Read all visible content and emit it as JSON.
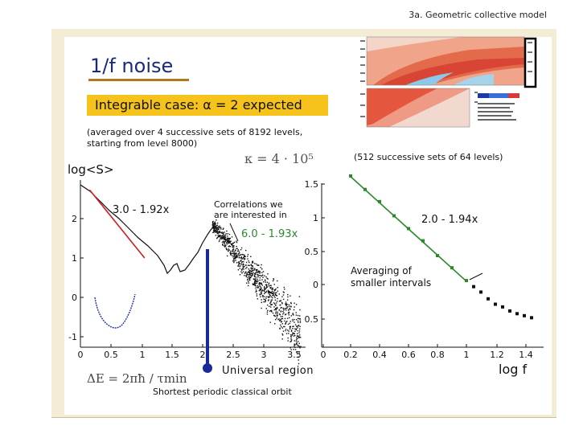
{
  "header": {
    "title": "3a. Geometric collective model"
  },
  "slide": {
    "title": "1/f noise",
    "banner": "Integrable case: α = 2 expected",
    "note_left": "(averaged over 4 successive sets of 8192 levels, starting from level 8000)",
    "note_right": "(512 successive sets of 64 levels)",
    "formula_s": "κ = 4 · 10⁵",
    "ylabel": "log<S>",
    "xlabel": "log f",
    "fit_left": "3.0 - 1.92x",
    "fit_mid": "6.0 - 1.93x",
    "fit_right": "2.0 - 1.94x",
    "annot_correlations": "Correlations we are interested in",
    "annot_averaging": "Averaging of smaller intervals",
    "universal_region": "Universal region",
    "formula_de": "ΔE = 2πħ / τmin",
    "orbit_label": "Shortest periodic classical orbit"
  },
  "colors": {
    "fit_left": "#cc2222",
    "fit_right": "#2a8a2a",
    "marker": "#1a2a9a",
    "banner": "#f6c31c",
    "title": "#1a2a7a"
  },
  "chart_data": {
    "type": "line",
    "xlabel": "log f",
    "ylabel": "log<S>",
    "left_axis": {
      "ticks_y": [
        "-1",
        "0",
        "1",
        "2"
      ],
      "ticks_x": [
        "0",
        "0.5",
        "1",
        "1.5",
        "2",
        "2.5",
        "3",
        "3.5"
      ]
    },
    "right_axis": {
      "ticks_y": [
        "0.5",
        "0",
        "0.5",
        "1",
        "1.5"
      ],
      "ticks_x": [
        "0",
        "0.2",
        "0.4",
        "0.6",
        "0.8",
        "1",
        "1.2",
        "1.4"
      ]
    },
    "series": [
      {
        "fit": "3.0 - 1.92x",
        "x": [
          0.15,
          1.05
        ],
        "y": [
          2.71,
          0.98
        ]
      },
      {
        "fit": "6.0 - 1.93x",
        "x": [
          2.15,
          3.6
        ],
        "y": [
          1.85,
          -0.95
        ]
      },
      {
        "fit": "2.0 - 1.94x",
        "x": [
          0.2,
          1.0
        ],
        "y": [
          1.61,
          0.06
        ]
      }
    ],
    "right_points": {
      "x": [
        0.2,
        0.3,
        0.4,
        0.5,
        0.6,
        0.7,
        0.8,
        0.9,
        1.0,
        1.05,
        1.1,
        1.15,
        1.2,
        1.25,
        1.3,
        1.35,
        1.4,
        1.45
      ],
      "y": [
        1.62,
        1.42,
        1.24,
        1.03,
        0.84,
        0.66,
        0.44,
        0.26,
        0.07,
        -0.02,
        -0.1,
        -0.2,
        -0.28,
        -0.32,
        -0.38,
        -0.42,
        -0.45,
        -0.48
      ]
    }
  },
  "icons": {
    "marker": "vertical-marker",
    "highlight": "highlight-box"
  }
}
